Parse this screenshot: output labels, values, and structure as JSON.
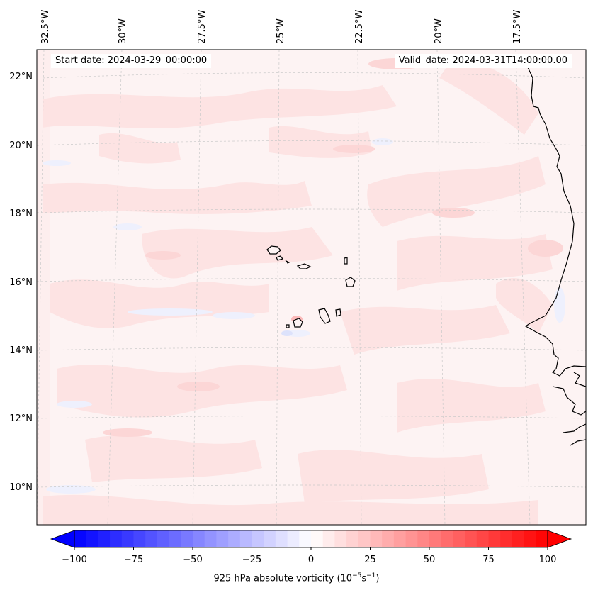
{
  "header": {
    "start_date": "Start date: 2024-03-29_00:00:00",
    "valid_date": "Valid_date: 2024-03-31T14:00:00.00"
  },
  "map": {
    "field": "925 hPa absolute vorticity",
    "longitude_labels": [
      "32.5°W",
      "30°W",
      "27.5°W",
      "25°W",
      "22.5°W",
      "20°W",
      "17.5°W"
    ],
    "latitude_labels": [
      "22°N",
      "20°N",
      "18°N",
      "16°N",
      "14°N",
      "12°N",
      "10°N"
    ],
    "features": [
      "Cape Verde Islands",
      "West African coastline"
    ],
    "gridlines": true
  },
  "colorbar": {
    "label_prefix": "925 hPa absolute vorticity (10",
    "label_exp1": "−5",
    "label_mid": "s",
    "label_exp2": "−1",
    "label_suffix": ")",
    "ticks": [
      "−100",
      "−75",
      "−50",
      "−25",
      "0",
      "25",
      "50",
      "75",
      "100"
    ],
    "min": -100,
    "max": 100,
    "colormap": "bwr",
    "extend": "both"
  }
}
